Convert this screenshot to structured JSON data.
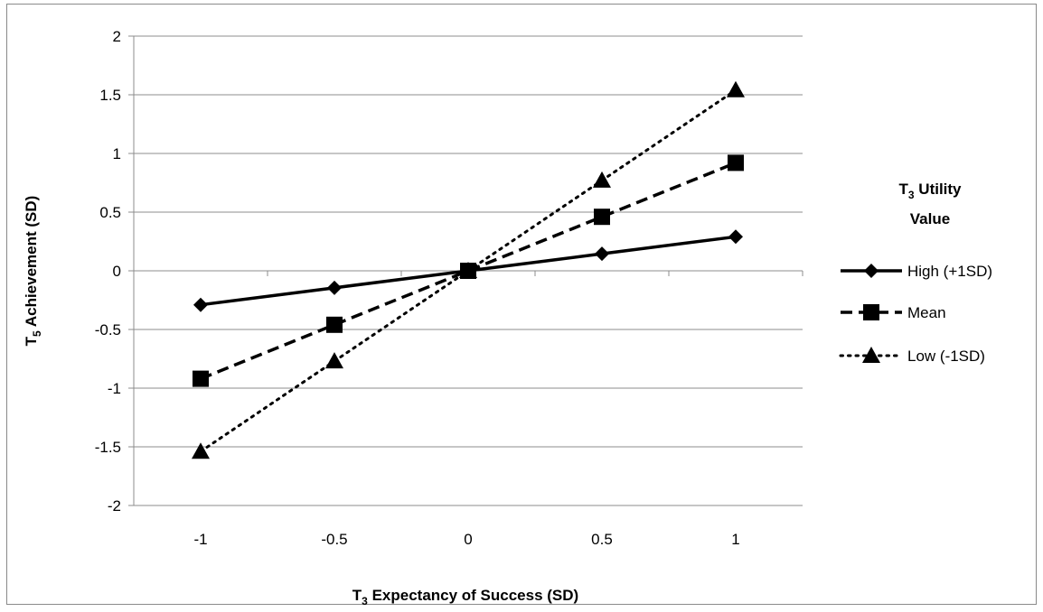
{
  "chart_data": {
    "type": "line",
    "x": [
      -1,
      -0.5,
      0,
      0.5,
      1
    ],
    "x_tick_labels": [
      "-1",
      "-0.5",
      "0",
      "0.5",
      "1"
    ],
    "y_tick_labels": [
      "2",
      "1.5",
      "1",
      "0.5",
      "0",
      "-0.5",
      "-1",
      "-1.5",
      "-2"
    ],
    "ylim": [
      -2,
      2
    ],
    "xlabel_parts": {
      "main": "T",
      "sub": "3",
      "rest": " Expectancy of Success (SD)"
    },
    "ylabel_parts": {
      "main": "T",
      "sub": "5",
      "rest": " Achievement (SD)"
    },
    "legend_title_parts": {
      "line1_main": "T",
      "line1_sub": "3",
      "line1_rest": " Utility",
      "line2": "Value"
    },
    "legend_position": "right",
    "grid": "horizontal",
    "series": [
      {
        "name": "High (+1SD)",
        "values": [
          -0.29,
          -0.145,
          0,
          0.145,
          0.29
        ],
        "marker": "diamond",
        "dash": "solid",
        "color": "#000000"
      },
      {
        "name": "Mean",
        "values": [
          -0.92,
          -0.46,
          0,
          0.46,
          0.92
        ],
        "marker": "square",
        "dash": "dashed",
        "color": "#000000"
      },
      {
        "name": "Low (-1SD)",
        "values": [
          -1.54,
          -0.77,
          0,
          0.77,
          1.54
        ],
        "marker": "triangle",
        "dash": "dotted",
        "color": "#000000"
      }
    ]
  }
}
